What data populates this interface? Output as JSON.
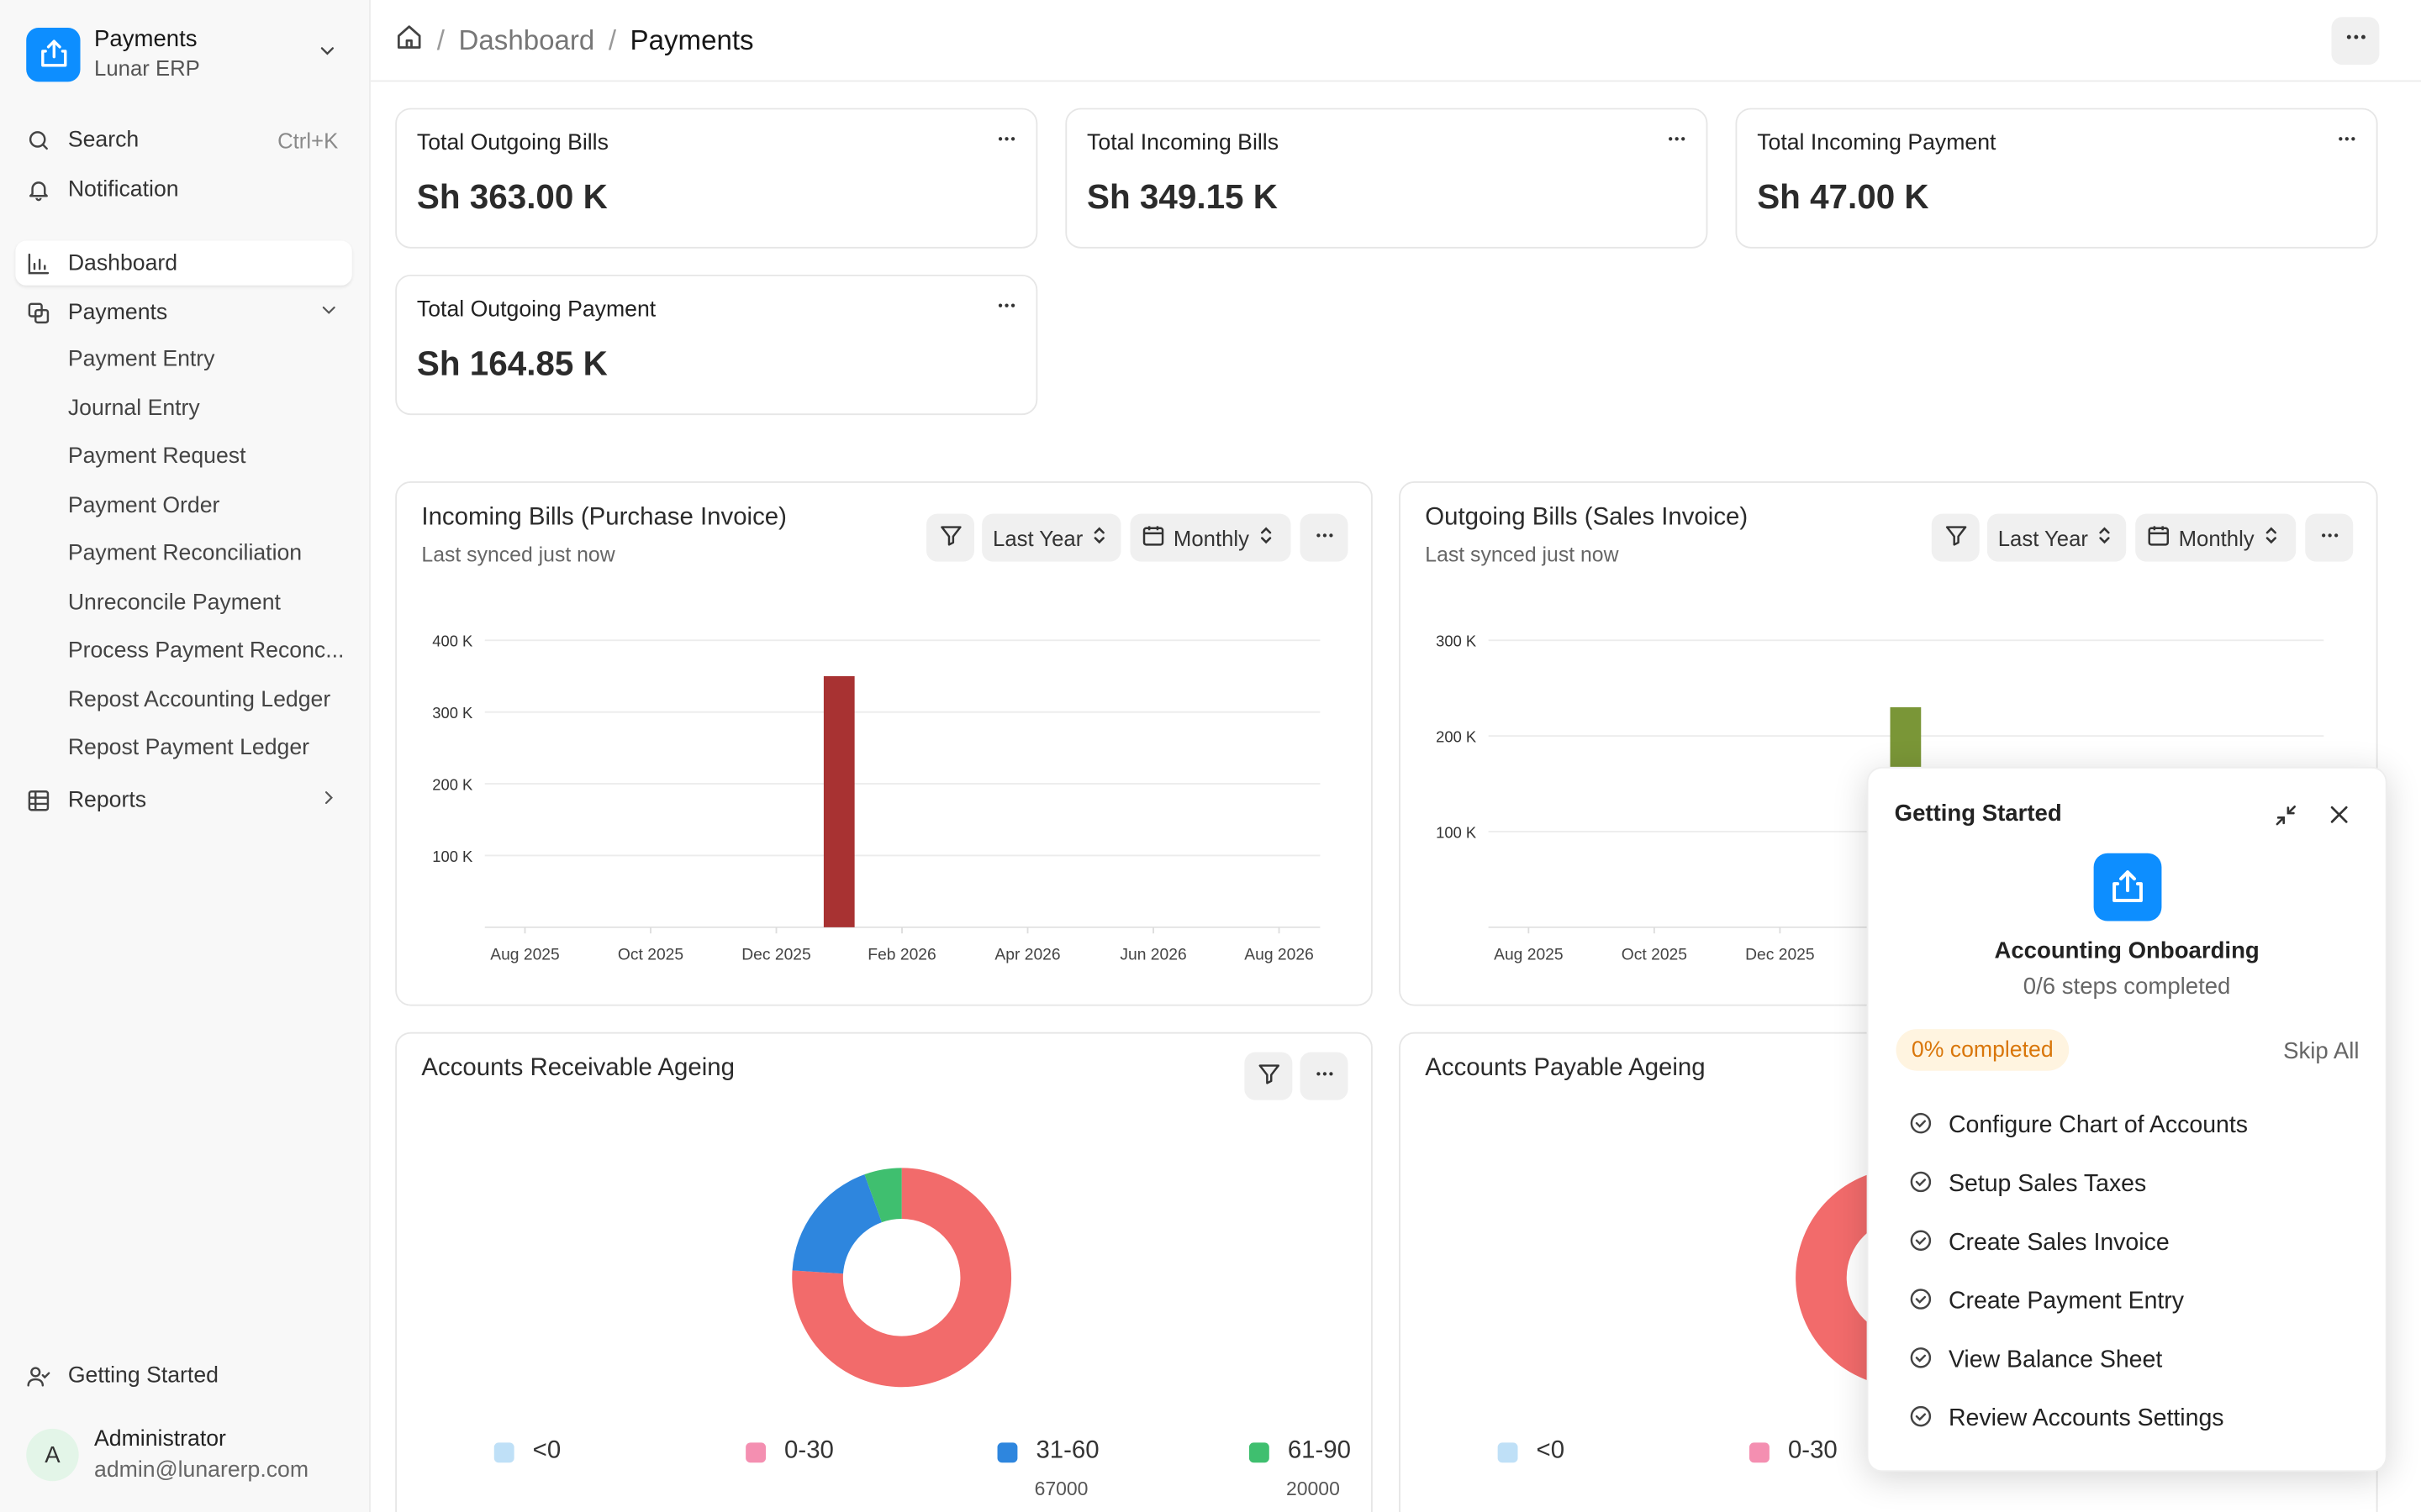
{
  "workspace": {
    "title": "Payments",
    "subtitle": "Lunar ERP"
  },
  "sidebar": {
    "search": {
      "label": "Search",
      "shortcut": "Ctrl+K"
    },
    "notification": "Notification",
    "dashboard": "Dashboard",
    "payments": {
      "label": "Payments",
      "items": [
        "Payment Entry",
        "Journal Entry",
        "Payment Request",
        "Payment Order",
        "Payment Reconciliation",
        "Unreconcile Payment",
        "Process Payment Reconc...",
        "Repost Accounting Ledger",
        "Repost Payment Ledger"
      ]
    },
    "reports": "Reports",
    "getting_started": "Getting Started",
    "user": {
      "initial": "A",
      "name": "Administrator",
      "email": "admin@lunarerp.com"
    }
  },
  "breadcrumb": {
    "parent": "Dashboard",
    "current": "Payments",
    "sep": "/"
  },
  "cards": [
    {
      "label": "Total Outgoing Bills",
      "value": "Sh 363.00 K"
    },
    {
      "label": "Total Incoming Bills",
      "value": "Sh 349.15 K"
    },
    {
      "label": "Total Incoming Payment",
      "value": "Sh 47.00 K"
    },
    {
      "label": "Total Outgoing Payment",
      "value": "Sh 164.85 K"
    }
  ],
  "incoming_chart": {
    "title": "Incoming Bills (Purchase Invoice)",
    "synced": "Last synced just now",
    "timespan": "Last Year",
    "interval": "Monthly"
  },
  "outgoing_chart": {
    "title": "Outgoing Bills (Sales Invoice)",
    "synced": "Last synced just now",
    "timespan": "Last Year",
    "interval": "Monthly"
  },
  "receivable": {
    "title": "Accounts Receivable Ageing"
  },
  "payable": {
    "title": "Accounts Payable Ageing"
  },
  "chart_data": [
    {
      "type": "bar",
      "x_ticks": [
        "Aug 2025",
        "Oct 2025",
        "Dec 2025",
        "Feb 2026",
        "Apr 2026",
        "Jun 2026",
        "Aug 2026"
      ],
      "y_ticks": [
        "100 K",
        "200 K",
        "300 K",
        "400 K"
      ],
      "ylim": [
        0,
        400000
      ],
      "series": [
        {
          "values": [
            {
              "x": "Jan 2026",
              "y": 350000
            }
          ]
        }
      ],
      "color": "#a83232",
      "grid": true
    },
    {
      "type": "bar",
      "x_ticks": [
        "Aug 2025",
        "Oct 2025",
        "Dec 2025"
      ],
      "y_ticks": [
        "100 K",
        "200 K",
        "300 K"
      ],
      "ylim": [
        0,
        300000
      ],
      "series": [
        {
          "values": [
            {
              "x": "Feb 2026",
              "y": 230000
            }
          ]
        }
      ],
      "color": "#7a9637",
      "grid": true
    },
    {
      "type": "pie",
      "labels": [
        "<0",
        "0-30",
        "31-60",
        "61-90"
      ],
      "values": [
        0,
        276000,
        67000,
        20000
      ],
      "value_labels": [
        "",
        "",
        "67000",
        "20000"
      ],
      "colors": [
        "#bfe0f7",
        "#f26b6b",
        "#2e86de",
        "#3fbf6f"
      ],
      "legend_colors": [
        "#bfe0f7",
        "#f48fb1",
        "#2e86de",
        "#3fbf6f"
      ]
    },
    {
      "type": "pie",
      "labels": [
        "<0",
        "0-30"
      ],
      "colors": [
        "#bfe0f7",
        "#f26b6b"
      ],
      "legend_colors": [
        "#bfe0f7",
        "#f48fb1"
      ]
    }
  ],
  "onboarding": {
    "title": "Getting Started",
    "heading": "Accounting Onboarding",
    "progress": "0/6 steps completed",
    "badge": "0% completed",
    "skip": "Skip All",
    "steps": [
      "Configure Chart of Accounts",
      "Setup Sales Taxes",
      "Create Sales Invoice",
      "Create Payment Entry",
      "View Balance Sheet",
      "Review Accounts Settings"
    ]
  },
  "colors": {
    "accent": "#0d8eff",
    "bar_incoming": "#a83232",
    "bar_outgoing": "#7a9637"
  },
  "icons": [
    "app-logo-icon",
    "chevron-down-icon",
    "search-icon",
    "bell-icon",
    "bar-chart-icon",
    "payments-icon",
    "table-icon",
    "home-icon",
    "more-icon",
    "filter-icon",
    "calendar-icon",
    "updown-icon",
    "minimize-icon",
    "close-icon",
    "check-circle-icon",
    "user-check-icon"
  ]
}
